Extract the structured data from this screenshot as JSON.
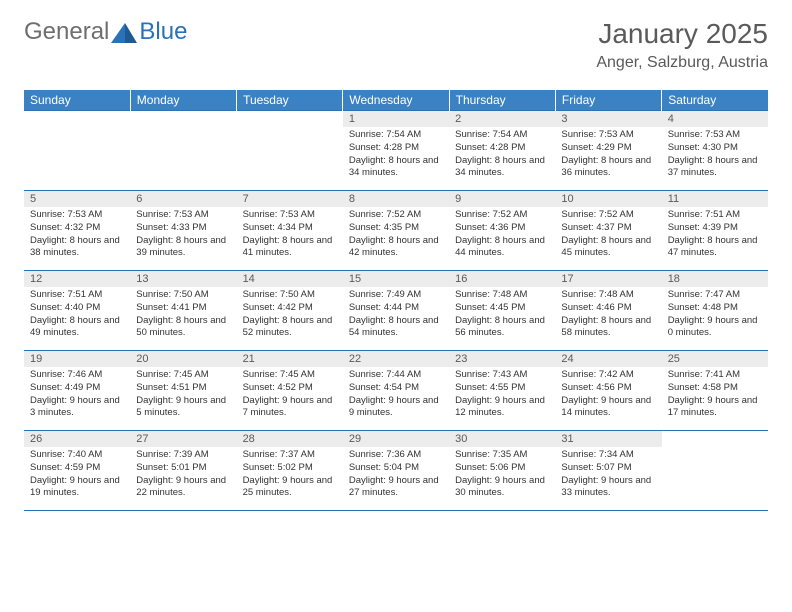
{
  "logo": {
    "general": "General",
    "blue": "Blue"
  },
  "title": "January 2025",
  "location": "Anger, Salzburg, Austria",
  "colors": {
    "header_bg": "#3b82c4",
    "header_text": "#ffffff",
    "border": "#2a71b8",
    "daynum_bg": "#ececec",
    "text_gray": "#5a5a5a",
    "body_text": "#333333"
  },
  "weekdays": [
    "Sunday",
    "Monday",
    "Tuesday",
    "Wednesday",
    "Thursday",
    "Friday",
    "Saturday"
  ],
  "weeks": [
    [
      null,
      null,
      null,
      {
        "n": "1",
        "sr": "7:54 AM",
        "ss": "4:28 PM",
        "dl": "8 hours and 34 minutes."
      },
      {
        "n": "2",
        "sr": "7:54 AM",
        "ss": "4:28 PM",
        "dl": "8 hours and 34 minutes."
      },
      {
        "n": "3",
        "sr": "7:53 AM",
        "ss": "4:29 PM",
        "dl": "8 hours and 36 minutes."
      },
      {
        "n": "4",
        "sr": "7:53 AM",
        "ss": "4:30 PM",
        "dl": "8 hours and 37 minutes."
      }
    ],
    [
      {
        "n": "5",
        "sr": "7:53 AM",
        "ss": "4:32 PM",
        "dl": "8 hours and 38 minutes."
      },
      {
        "n": "6",
        "sr": "7:53 AM",
        "ss": "4:33 PM",
        "dl": "8 hours and 39 minutes."
      },
      {
        "n": "7",
        "sr": "7:53 AM",
        "ss": "4:34 PM",
        "dl": "8 hours and 41 minutes."
      },
      {
        "n": "8",
        "sr": "7:52 AM",
        "ss": "4:35 PM",
        "dl": "8 hours and 42 minutes."
      },
      {
        "n": "9",
        "sr": "7:52 AM",
        "ss": "4:36 PM",
        "dl": "8 hours and 44 minutes."
      },
      {
        "n": "10",
        "sr": "7:52 AM",
        "ss": "4:37 PM",
        "dl": "8 hours and 45 minutes."
      },
      {
        "n": "11",
        "sr": "7:51 AM",
        "ss": "4:39 PM",
        "dl": "8 hours and 47 minutes."
      }
    ],
    [
      {
        "n": "12",
        "sr": "7:51 AM",
        "ss": "4:40 PM",
        "dl": "8 hours and 49 minutes."
      },
      {
        "n": "13",
        "sr": "7:50 AM",
        "ss": "4:41 PM",
        "dl": "8 hours and 50 minutes."
      },
      {
        "n": "14",
        "sr": "7:50 AM",
        "ss": "4:42 PM",
        "dl": "8 hours and 52 minutes."
      },
      {
        "n": "15",
        "sr": "7:49 AM",
        "ss": "4:44 PM",
        "dl": "8 hours and 54 minutes."
      },
      {
        "n": "16",
        "sr": "7:48 AM",
        "ss": "4:45 PM",
        "dl": "8 hours and 56 minutes."
      },
      {
        "n": "17",
        "sr": "7:48 AM",
        "ss": "4:46 PM",
        "dl": "8 hours and 58 minutes."
      },
      {
        "n": "18",
        "sr": "7:47 AM",
        "ss": "4:48 PM",
        "dl": "9 hours and 0 minutes."
      }
    ],
    [
      {
        "n": "19",
        "sr": "7:46 AM",
        "ss": "4:49 PM",
        "dl": "9 hours and 3 minutes."
      },
      {
        "n": "20",
        "sr": "7:45 AM",
        "ss": "4:51 PM",
        "dl": "9 hours and 5 minutes."
      },
      {
        "n": "21",
        "sr": "7:45 AM",
        "ss": "4:52 PM",
        "dl": "9 hours and 7 minutes."
      },
      {
        "n": "22",
        "sr": "7:44 AM",
        "ss": "4:54 PM",
        "dl": "9 hours and 9 minutes."
      },
      {
        "n": "23",
        "sr": "7:43 AM",
        "ss": "4:55 PM",
        "dl": "9 hours and 12 minutes."
      },
      {
        "n": "24",
        "sr": "7:42 AM",
        "ss": "4:56 PM",
        "dl": "9 hours and 14 minutes."
      },
      {
        "n": "25",
        "sr": "7:41 AM",
        "ss": "4:58 PM",
        "dl": "9 hours and 17 minutes."
      }
    ],
    [
      {
        "n": "26",
        "sr": "7:40 AM",
        "ss": "4:59 PM",
        "dl": "9 hours and 19 minutes."
      },
      {
        "n": "27",
        "sr": "7:39 AM",
        "ss": "5:01 PM",
        "dl": "9 hours and 22 minutes."
      },
      {
        "n": "28",
        "sr": "7:37 AM",
        "ss": "5:02 PM",
        "dl": "9 hours and 25 minutes."
      },
      {
        "n": "29",
        "sr": "7:36 AM",
        "ss": "5:04 PM",
        "dl": "9 hours and 27 minutes."
      },
      {
        "n": "30",
        "sr": "7:35 AM",
        "ss": "5:06 PM",
        "dl": "9 hours and 30 minutes."
      },
      {
        "n": "31",
        "sr": "7:34 AM",
        "ss": "5:07 PM",
        "dl": "9 hours and 33 minutes."
      },
      null
    ]
  ],
  "lbl": {
    "sr": "Sunrise: ",
    "ss": "Sunset: ",
    "dl": "Daylight: "
  }
}
